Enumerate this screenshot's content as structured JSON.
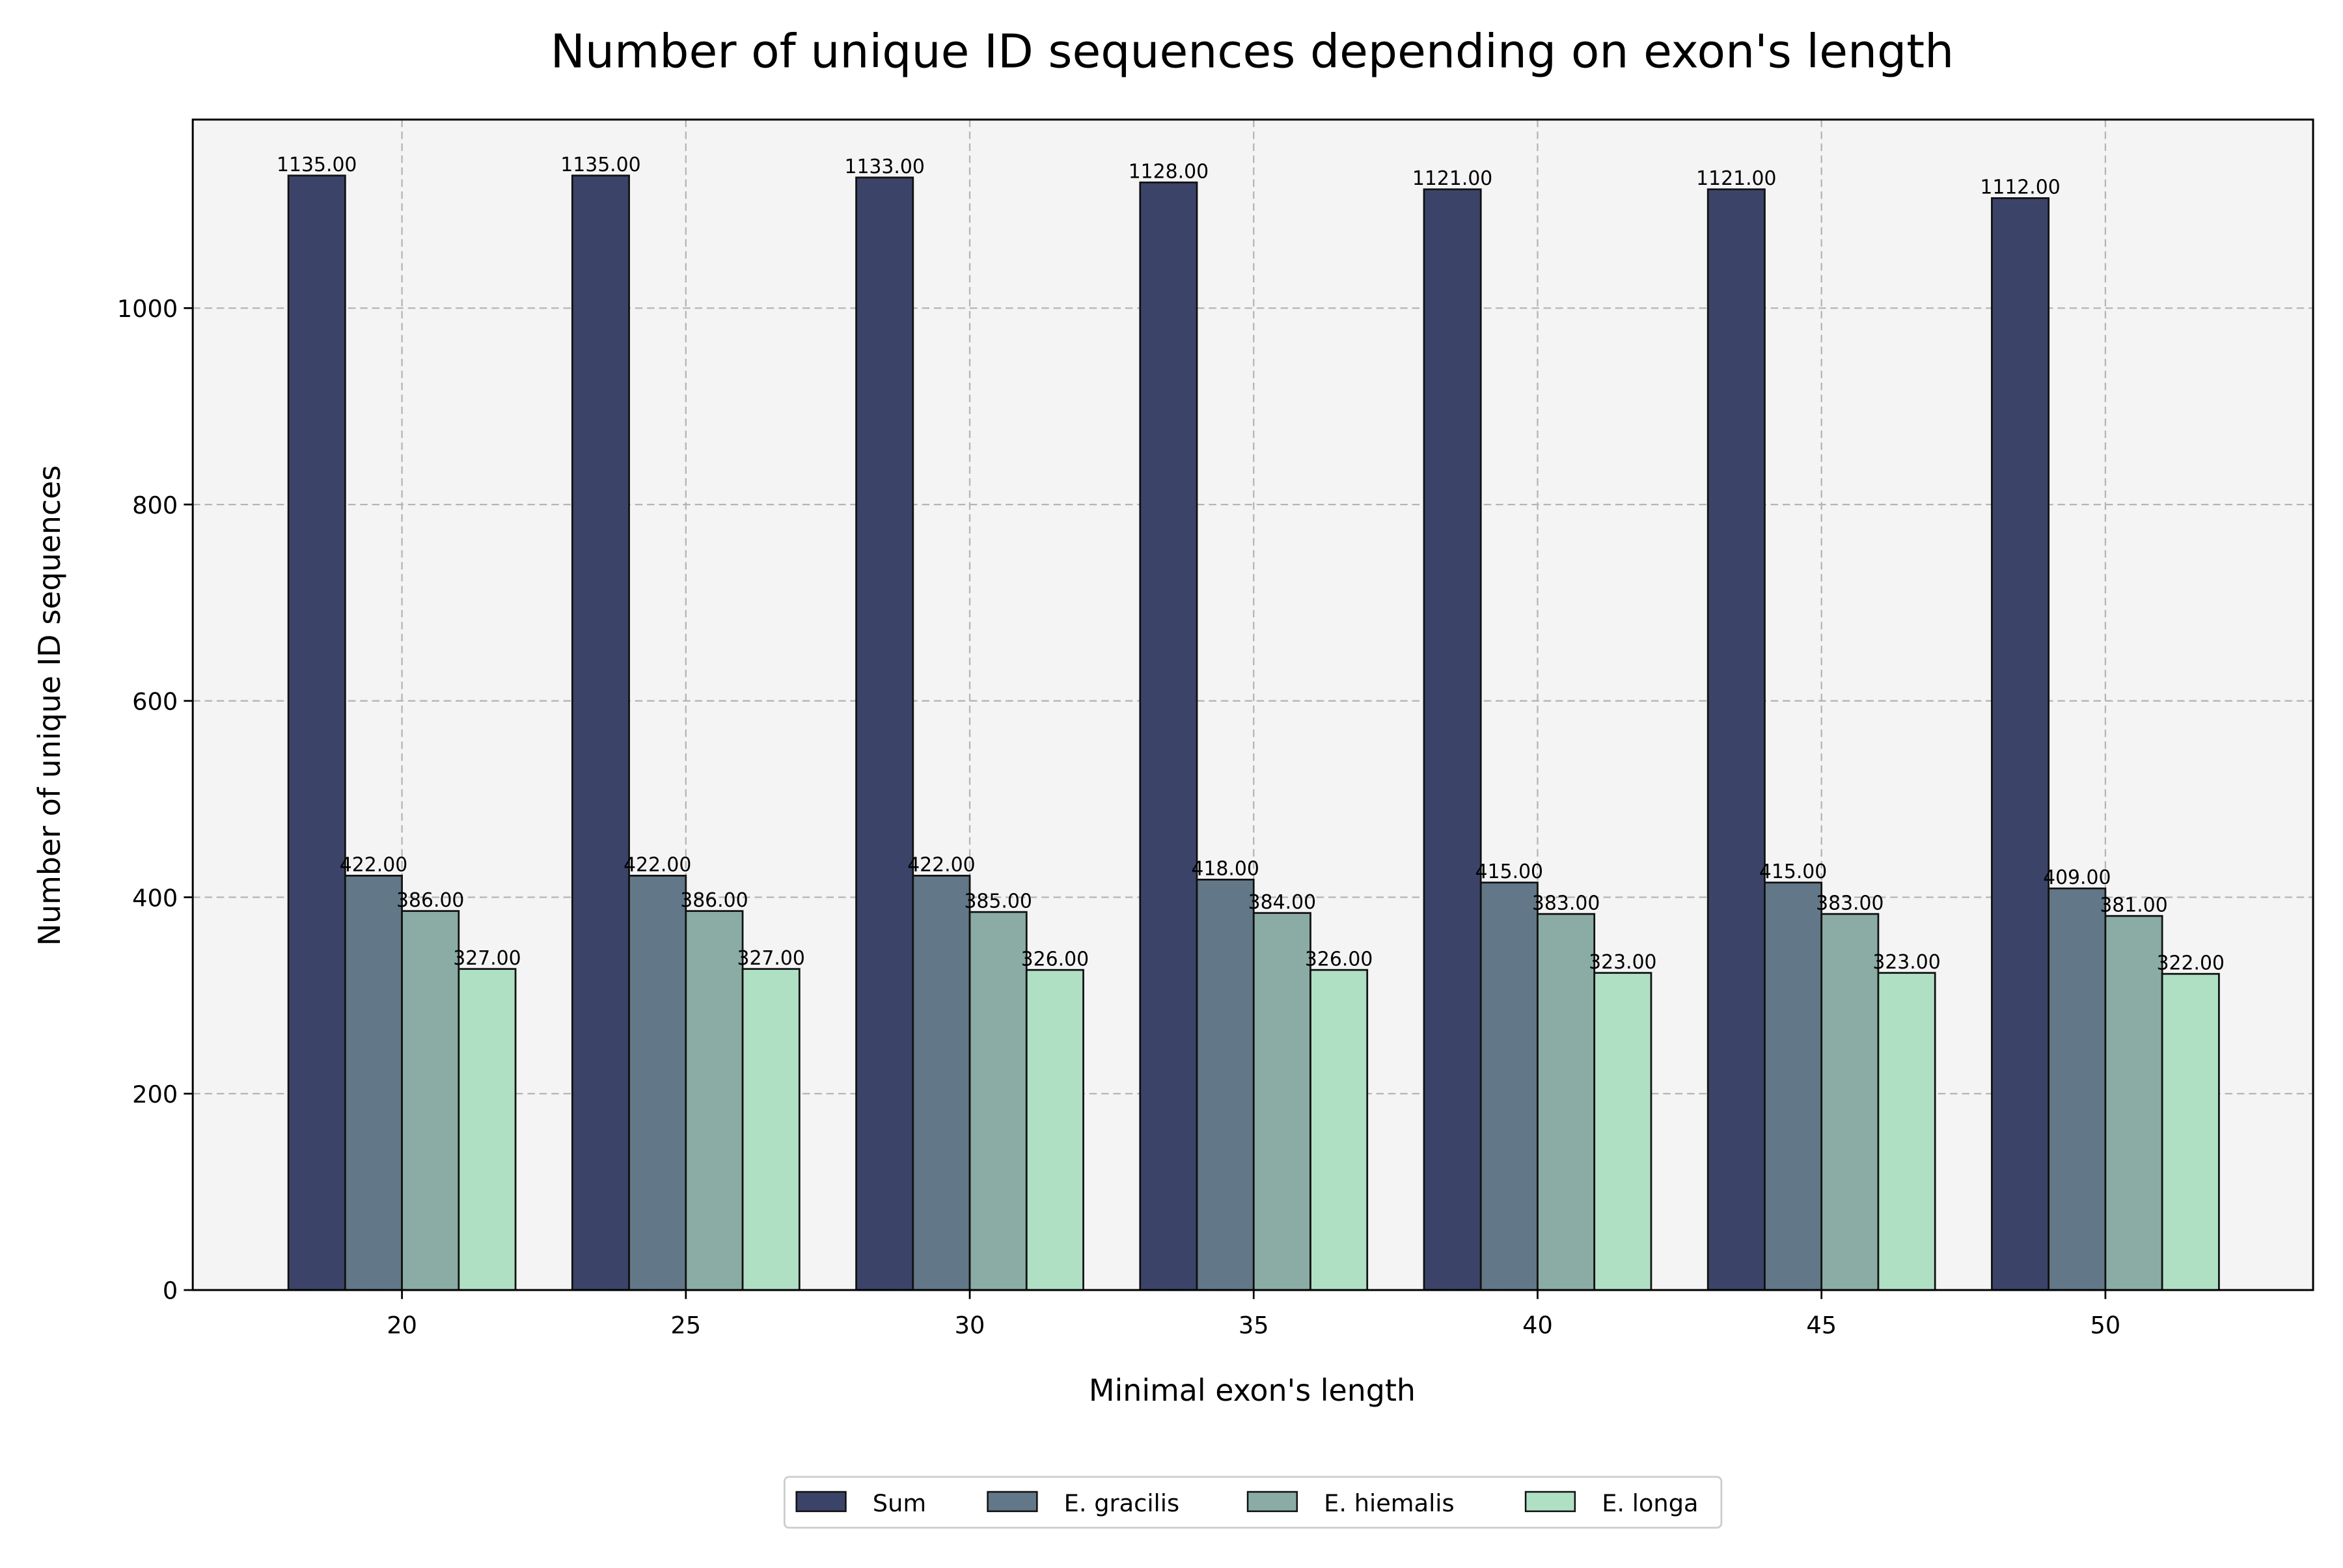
{
  "chart_data": {
    "type": "bar",
    "title": "Number of unique ID sequences depending on exon's length",
    "xlabel": "Minimal exon's length",
    "ylabel": "Number of unique ID sequences",
    "categories": [
      "20",
      "25",
      "30",
      "35",
      "40",
      "45",
      "50"
    ],
    "series": [
      {
        "name": "Sum",
        "color": "#3b4468",
        "values": [
          1135,
          1135,
          1133,
          1128,
          1121,
          1121,
          1112
        ],
        "labels": [
          "1135.00",
          "1135.00",
          "1133.00",
          "1128.00",
          "1121.00",
          "1121.00",
          "1112.00"
        ]
      },
      {
        "name": "E. gracilis",
        "color": "#627787",
        "values": [
          422,
          422,
          422,
          418,
          415,
          415,
          409
        ],
        "labels": [
          "422.00",
          "422.00",
          "422.00",
          "418.00",
          "415.00",
          "415.00",
          "409.00"
        ]
      },
      {
        "name": "E. hiemalis",
        "color": "#8aaca5",
        "values": [
          386,
          386,
          385,
          384,
          383,
          383,
          381
        ],
        "labels": [
          "386.00",
          "386.00",
          "385.00",
          "384.00",
          "383.00",
          "383.00",
          "381.00"
        ]
      },
      {
        "name": "E. longa",
        "color": "#b0e0c4",
        "values": [
          327,
          327,
          326,
          326,
          323,
          323,
          322
        ],
        "labels": [
          "327.00",
          "327.00",
          "326.00",
          "326.00",
          "323.00",
          "323.00",
          "322.00"
        ]
      }
    ],
    "ylim": [
      0,
      1192
    ],
    "yticks": [
      "0",
      "200",
      "400",
      "600",
      "800",
      "1000"
    ],
    "grid": true,
    "legend_placement": "bottom-center",
    "plot_background": "#f4f4f4"
  }
}
